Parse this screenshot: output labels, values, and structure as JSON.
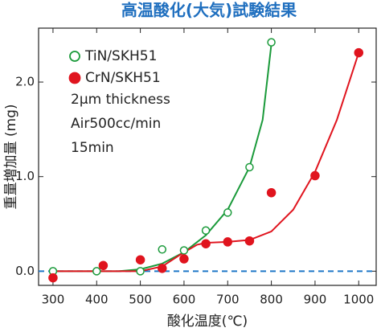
{
  "chart_data": {
    "type": "scatter",
    "title": "高温酸化(大気)試験結果",
    "x_label": "酸化温度(℃)",
    "y_label": "重量増加量 (mg)",
    "series": [
      {
        "name": "TiN/SKH51",
        "color": "#1a9a3a",
        "marker": "open",
        "x": [
          300,
          400,
          500,
          550,
          600,
          650,
          700,
          750,
          800
        ],
        "values": [
          0.0,
          0.0,
          0.0,
          0.23,
          0.22,
          0.43,
          0.62,
          1.1,
          2.42
        ]
      },
      {
        "name": "CrN/SKH51",
        "color": "#e0141e",
        "marker": "filled",
        "x": [
          300,
          415,
          500,
          550,
          600,
          650,
          700,
          750,
          800,
          900,
          1000
        ],
        "values": [
          -0.07,
          0.06,
          0.12,
          0.03,
          0.13,
          0.29,
          0.31,
          0.32,
          0.83,
          1.01,
          2.31
        ]
      }
    ],
    "fits": [
      {
        "color": "#1a9a3a",
        "x": [
          300,
          450,
          500,
          550,
          600,
          650,
          700,
          750,
          780,
          800
        ],
        "values": [
          0,
          0,
          0.02,
          0.08,
          0.2,
          0.38,
          0.65,
          1.1,
          1.6,
          2.4
        ]
      },
      {
        "color": "#e0141e",
        "x": [
          300,
          500,
          550,
          600,
          630,
          650,
          700,
          750,
          800,
          850,
          900,
          950,
          1000
        ],
        "values": [
          0,
          0,
          0.05,
          0.2,
          0.28,
          0.3,
          0.31,
          0.33,
          0.42,
          0.65,
          1.05,
          1.6,
          2.31
        ]
      }
    ],
    "reference_line": {
      "value": 0,
      "color": "#1f78c8"
    },
    "annotations": [
      "2μm thickness",
      "Air500cc/min",
      "15min"
    ],
    "xlim": [
      267,
      1040
    ],
    "ylim": [
      -0.15,
      2.57
    ],
    "xticks": [
      300,
      400,
      500,
      600,
      700,
      800,
      900,
      1000
    ],
    "yticks": [
      {
        "value": 0,
        "label": "0.0"
      },
      {
        "value": 1,
        "label": "1.0"
      },
      {
        "value": 2,
        "label": "2.0"
      }
    ]
  }
}
